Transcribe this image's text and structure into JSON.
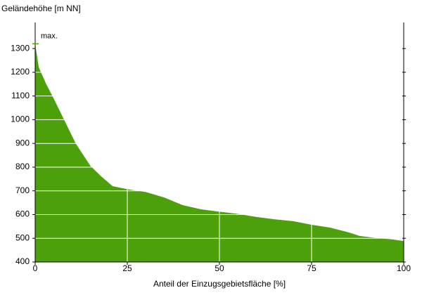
{
  "chart_data": {
    "type": "area",
    "ylabel": "Geländehöhe [m NN]",
    "xlabel": "Anteil der Einzugsgebietsfläche [%]",
    "annotation": "max.",
    "color": "#4ca10a",
    "x": [
      0,
      1,
      3,
      5,
      8,
      11,
      15,
      18,
      21,
      25,
      30,
      35,
      40,
      45,
      50,
      55,
      60,
      65,
      70,
      75,
      80,
      85,
      88,
      92,
      97,
      100
    ],
    "values": [
      1320,
      1220,
      1150,
      1090,
      995,
      900,
      805,
      760,
      720,
      707,
      695,
      672,
      640,
      622,
      612,
      603,
      590,
      580,
      572,
      557,
      545,
      525,
      510,
      502,
      495,
      488
    ],
    "xlim": [
      0,
      100
    ],
    "xticks": [
      0,
      25,
      50,
      75,
      100
    ],
    "ylim": [
      400,
      1410
    ],
    "yticks": [
      400,
      500,
      600,
      700,
      800,
      900,
      1000,
      1100,
      1200,
      1300
    ],
    "grid": true
  }
}
